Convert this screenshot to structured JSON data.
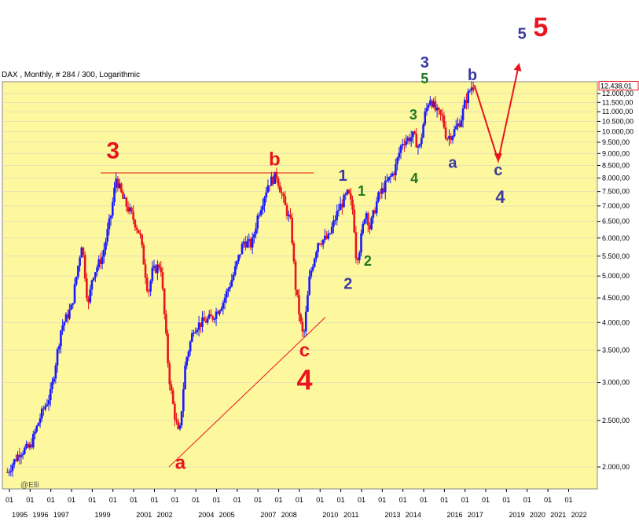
{
  "header": {
    "title": "DAX , Monthly, # 284 / 300, Logarithmic"
  },
  "watermark": "@Elli",
  "colors": {
    "plot_bg": "#fdf79d",
    "up_bar": "#1a1aff",
    "down_bar": "#e8141e",
    "red_label": "#e8141e",
    "blue_label": "#3a3a9e",
    "green_label": "#1f7a1f",
    "grid": "#cfcfcf",
    "last_price_border": "#e8141e"
  },
  "chart_data": {
    "type": "candlestick",
    "title": "",
    "scale": "logarithmic",
    "ylim": [
      1800,
      12700
    ],
    "y_ticks": [
      "2.000,00",
      "2.500,00",
      "3.000,00",
      "3.500,00",
      "4.000,00",
      "4.500,00",
      "5.000,00",
      "5.500,00",
      "6.000,00",
      "6.500,00",
      "7.000,00",
      "7.500,00",
      "8.000,00",
      "8.500,00",
      "9.000,00",
      "9.500,00",
      "10.000,00",
      "10.500,00",
      "11.000,00",
      "11.500,00",
      "12.000,00"
    ],
    "last_price_label": "12.438,01",
    "last_price": 12438,
    "x_tick_top": [
      "01",
      "01",
      "01",
      "01",
      "01",
      "01",
      "01",
      "01",
      "01",
      "01",
      "01",
      "01",
      "01",
      "01",
      "01",
      "01",
      "01",
      "01",
      "01",
      "01",
      "01",
      "01",
      "01",
      "01",
      "01",
      "01",
      "01",
      "01",
      "01"
    ],
    "x_year_labels": [
      "1995",
      "1996",
      "1997",
      "1999",
      "2001",
      "2002",
      "2004",
      "2005",
      "2007",
      "2008",
      "2010",
      "2011",
      "2013",
      "2014",
      "2016",
      "2017",
      "2019",
      "2020",
      "2021",
      "2022"
    ],
    "anchors": [
      [
        1994.9,
        1950
      ],
      [
        1995.5,
        2150
      ],
      [
        1996.0,
        2200
      ],
      [
        1996.5,
        2550
      ],
      [
        1997.0,
        2850
      ],
      [
        1997.5,
        3900
      ],
      [
        1998.0,
        4300
      ],
      [
        1998.5,
        5900
      ],
      [
        1998.8,
        4300
      ],
      [
        1999.0,
        5000
      ],
      [
        1999.5,
        5500
      ],
      [
        1999.9,
        6700
      ],
      [
        2000.15,
        8000
      ],
      [
        2000.5,
        7200
      ],
      [
        2000.9,
        6700
      ],
      [
        2001.3,
        6100
      ],
      [
        2001.7,
        4600
      ],
      [
        2001.9,
        5100
      ],
      [
        2002.3,
        5300
      ],
      [
        2002.7,
        3100
      ],
      [
        2002.95,
        2600
      ],
      [
        2003.2,
        2300
      ],
      [
        2003.5,
        3300
      ],
      [
        2003.9,
        3900
      ],
      [
        2004.3,
        4000
      ],
      [
        2004.8,
        4100
      ],
      [
        2005.3,
        4400
      ],
      [
        2005.8,
        5000
      ],
      [
        2006.3,
        5900
      ],
      [
        2006.7,
        5800
      ],
      [
        2007.0,
        6700
      ],
      [
        2007.5,
        7800
      ],
      [
        2007.9,
        8100
      ],
      [
        2008.3,
        7000
      ],
      [
        2008.6,
        6400
      ],
      [
        2008.8,
        4800
      ],
      [
        2009.05,
        4000
      ],
      [
        2009.2,
        3700
      ],
      [
        2009.5,
        5000
      ],
      [
        2009.9,
        5900
      ],
      [
        2010.4,
        6000
      ],
      [
        2010.9,
        6900
      ],
      [
        2011.35,
        7450
      ],
      [
        2011.6,
        6800
      ],
      [
        2011.75,
        5400
      ],
      [
        2011.9,
        5700
      ],
      [
        2012.2,
        6900
      ],
      [
        2012.4,
        6300
      ],
      [
        2012.8,
        7300
      ],
      [
        2013.2,
        7800
      ],
      [
        2013.6,
        8300
      ],
      [
        2013.95,
        9500
      ],
      [
        2014.5,
        9800
      ],
      [
        2014.8,
        9200
      ],
      [
        2015.05,
        10800
      ],
      [
        2015.3,
        11800
      ],
      [
        2015.6,
        11000
      ],
      [
        2015.9,
        10700
      ],
      [
        2016.1,
        9700
      ],
      [
        2016.4,
        9900
      ],
      [
        2016.8,
        10600
      ],
      [
        2017.0,
        11500
      ],
      [
        2017.3,
        12400
      ],
      [
        2017.45,
        12438
      ]
    ],
    "projection": [
      [
        2017.45,
        12500
      ],
      [
        2018.6,
        8700
      ],
      [
        2019.6,
        13800
      ]
    ],
    "lines": [
      {
        "from": [
          1999.4,
          8200
        ],
        "to": [
          2009.7,
          8200
        ]
      },
      {
        "from": [
          2002.7,
          2000
        ],
        "to": [
          2010.25,
          4100
        ]
      }
    ],
    "wave_labels": [
      {
        "text": "3",
        "color": "red",
        "size": 30,
        "x": 2000.0,
        "y": 8800
      },
      {
        "text": "b",
        "color": "red",
        "size": 24,
        "x": 2007.8,
        "y": 8500
      },
      {
        "text": "a",
        "color": "red",
        "size": 24,
        "x": 2003.25,
        "y": 1980
      },
      {
        "text": "c",
        "color": "red",
        "size": 24,
        "x": 2009.25,
        "y": 3400
      },
      {
        "text": "4",
        "color": "red",
        "size": 36,
        "x": 2009.25,
        "y": 2900
      },
      {
        "text": "5",
        "color": "red",
        "size": 34,
        "x": 2020.65,
        "y": 15800
      },
      {
        "text": "5",
        "color": "blue",
        "size": 20,
        "x": 2019.75,
        "y": 15600
      },
      {
        "text": "1",
        "color": "blue",
        "size": 20,
        "x": 2011.1,
        "y": 7900
      },
      {
        "text": "2",
        "color": "blue",
        "size": 20,
        "x": 2011.35,
        "y": 4700
      },
      {
        "text": "1",
        "color": "green",
        "size": 18,
        "x": 2012.0,
        "y": 7350
      },
      {
        "text": "2",
        "color": "green",
        "size": 18,
        "x": 2012.3,
        "y": 5250
      },
      {
        "text": "3",
        "color": "green",
        "size": 18,
        "x": 2014.5,
        "y": 10600
      },
      {
        "text": "4",
        "color": "green",
        "size": 18,
        "x": 2014.55,
        "y": 7800
      },
      {
        "text": "3",
        "color": "blue",
        "size": 20,
        "x": 2015.05,
        "y": 13600
      },
      {
        "text": "5",
        "color": "green",
        "size": 18,
        "x": 2015.05,
        "y": 12600
      },
      {
        "text": "a",
        "color": "blue",
        "size": 20,
        "x": 2016.4,
        "y": 8400
      },
      {
        "text": "b",
        "color": "blue",
        "size": 20,
        "x": 2017.35,
        "y": 12800
      },
      {
        "text": "c",
        "color": "blue",
        "size": 20,
        "x": 2018.6,
        "y": 8100
      },
      {
        "text": "4",
        "color": "blue",
        "size": 22,
        "x": 2018.7,
        "y": 7100
      }
    ]
  }
}
